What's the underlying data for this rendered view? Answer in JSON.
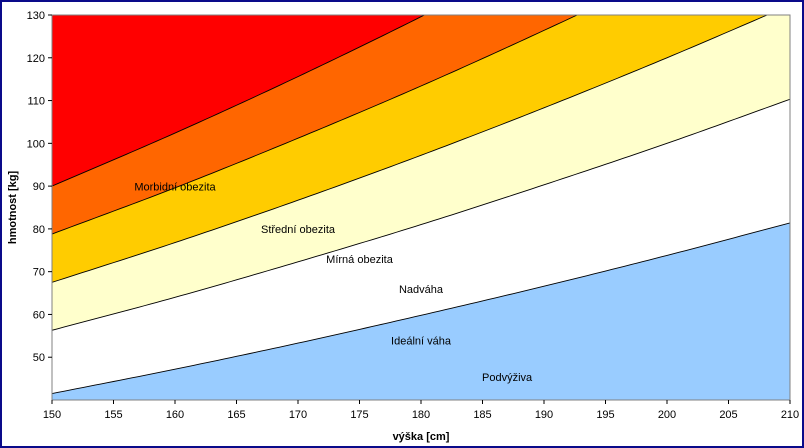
{
  "chart_data": {
    "type": "area",
    "title": "",
    "xlabel": "výška [cm]",
    "ylabel": "hmotnost [kg]",
    "xlim": [
      150,
      210
    ],
    "ylim": [
      40,
      130
    ],
    "x_ticks": [
      150,
      155,
      160,
      165,
      170,
      175,
      180,
      185,
      190,
      195,
      200,
      205,
      210
    ],
    "y_ticks": [
      50,
      60,
      70,
      80,
      90,
      100,
      110,
      120,
      130
    ],
    "x": [
      150,
      160,
      170,
      180,
      190,
      200,
      210
    ],
    "boundaries": [
      {
        "values": [
          41.5,
          47.2,
          53.3,
          59.8,
          66.6,
          73.8,
          81.4
        ]
      },
      {
        "values": [
          56.3,
          64.0,
          72.3,
          81.0,
          90.3,
          100.0,
          110.3
        ]
      },
      {
        "values": [
          67.5,
          76.8,
          86.7,
          97.2,
          108.3,
          120.0,
          132.3
        ]
      },
      {
        "values": [
          78.8,
          89.6,
          101.2,
          113.4,
          126.4,
          140.0,
          154.4
        ]
      },
      {
        "values": [
          90.0,
          102.4,
          115.6,
          129.6,
          144.4,
          160.0,
          176.4
        ]
      }
    ],
    "zones": [
      {
        "name": "Podvýživa",
        "color": "#99ccff",
        "label_at": [
          187,
          44.5
        ]
      },
      {
        "name": "Ideální váha",
        "color": "#ffffff",
        "label_at": [
          180,
          53.0
        ]
      },
      {
        "name": "Nadváha",
        "color": "#ffffcc",
        "label_at": [
          180,
          65.0
        ]
      },
      {
        "name": "Mírná obezita",
        "color": "#ffcc00",
        "label_at": [
          175,
          72.0
        ]
      },
      {
        "name": "Střední obezita",
        "color": "#ff6600",
        "label_at": [
          170,
          79.0
        ]
      },
      {
        "name": "Morbidní obezita",
        "color": "#ff0000",
        "label_at": [
          160,
          89.0
        ]
      }
    ]
  }
}
